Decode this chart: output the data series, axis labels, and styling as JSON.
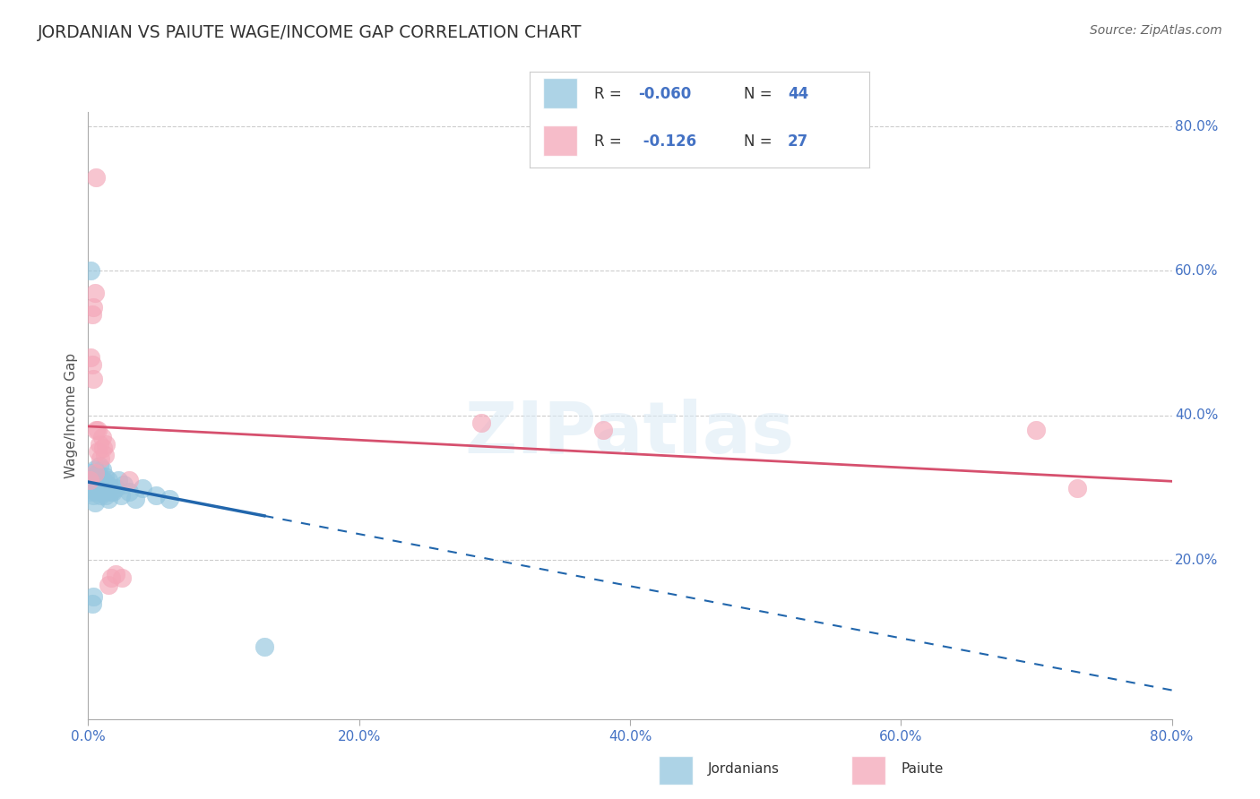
{
  "title": "JORDANIAN VS PAIUTE WAGE/INCOME GAP CORRELATION CHART",
  "source": "Source: ZipAtlas.com",
  "ylabel": "Wage/Income Gap",
  "xlim": [
    0.0,
    0.8
  ],
  "ylim": [
    -0.02,
    0.82
  ],
  "legend_r1_label": "R = ",
  "legend_r1_val": "-0.060",
  "legend_n1_label": "N = ",
  "legend_n1_val": "44",
  "legend_r2_label": "R = ",
  "legend_r2_val": " -0.126",
  "legend_n2_label": "N = ",
  "legend_n2_val": "27",
  "blue_color": "#92c5de",
  "pink_color": "#f4a6b8",
  "blue_line_color": "#2166ac",
  "pink_line_color": "#d6506e",
  "background_color": "#ffffff",
  "watermark": "ZIPatlas",
  "jordanian_x": [
    0.001,
    0.002,
    0.002,
    0.003,
    0.003,
    0.004,
    0.004,
    0.005,
    0.005,
    0.005,
    0.006,
    0.006,
    0.007,
    0.007,
    0.008,
    0.008,
    0.009,
    0.009,
    0.01,
    0.01,
    0.011,
    0.011,
    0.012,
    0.012,
    0.013,
    0.014,
    0.015,
    0.015,
    0.016,
    0.017,
    0.018,
    0.02,
    0.022,
    0.024,
    0.026,
    0.03,
    0.035,
    0.04,
    0.05,
    0.06,
    0.002,
    0.003,
    0.004,
    0.13
  ],
  "jordanian_y": [
    0.32,
    0.295,
    0.31,
    0.3,
    0.315,
    0.305,
    0.29,
    0.31,
    0.325,
    0.28,
    0.295,
    0.315,
    0.3,
    0.32,
    0.31,
    0.33,
    0.29,
    0.305,
    0.295,
    0.325,
    0.31,
    0.295,
    0.315,
    0.3,
    0.29,
    0.305,
    0.31,
    0.285,
    0.3,
    0.295,
    0.295,
    0.3,
    0.31,
    0.29,
    0.305,
    0.295,
    0.285,
    0.3,
    0.29,
    0.285,
    0.6,
    0.14,
    0.15,
    0.08
  ],
  "jordanian_y_extra": [],
  "paiute_x": [
    0.001,
    0.002,
    0.003,
    0.004,
    0.005,
    0.006,
    0.007,
    0.008,
    0.009,
    0.01,
    0.011,
    0.012,
    0.013,
    0.015,
    0.017,
    0.02,
    0.025,
    0.03,
    0.003,
    0.004,
    0.005,
    0.006,
    0.007,
    0.29,
    0.38,
    0.7,
    0.73
  ],
  "paiute_y": [
    0.31,
    0.48,
    0.47,
    0.45,
    0.32,
    0.38,
    0.35,
    0.36,
    0.34,
    0.37,
    0.355,
    0.345,
    0.36,
    0.165,
    0.175,
    0.18,
    0.175,
    0.31,
    0.54,
    0.55,
    0.57,
    0.73,
    0.38,
    0.39,
    0.38,
    0.38,
    0.3
  ]
}
